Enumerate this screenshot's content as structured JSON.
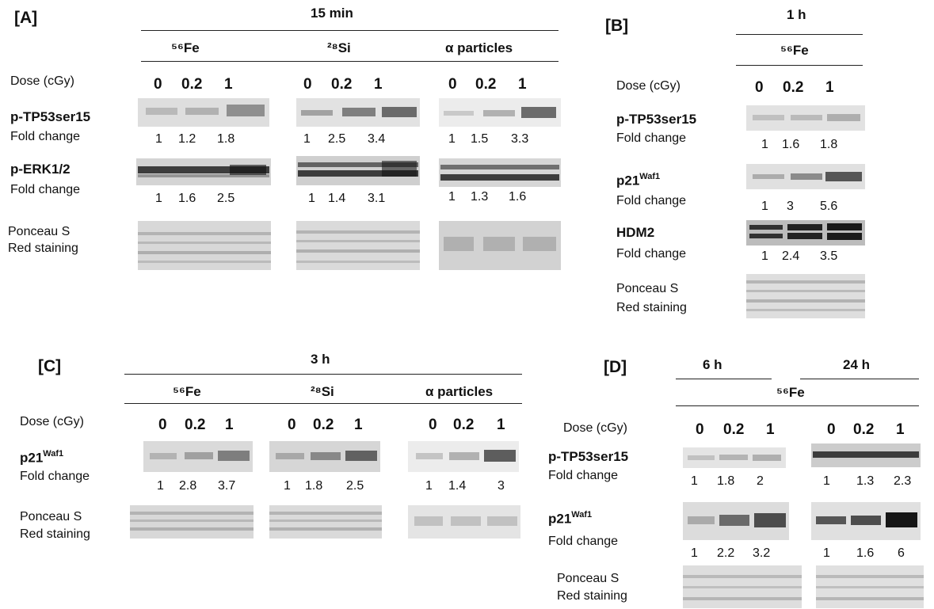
{
  "panels": {
    "A": {
      "letter": "[A]",
      "time": "15 min",
      "groups": [
        "⁵⁶Fe",
        "²⁸Si",
        "α particles"
      ],
      "dose_label": "Dose (cGy)",
      "doses": [
        "0",
        "0.2",
        "1"
      ],
      "rows": [
        {
          "label": "p-TP53ser15",
          "fold_label": "Fold change",
          "values": [
            [
              "1",
              "1.2",
              "1.8"
            ],
            [
              "1",
              "2.5",
              "3.4"
            ],
            [
              "1",
              "1.5",
              "3.3"
            ]
          ]
        },
        {
          "label": "p-ERK1/2",
          "fold_label": "Fold change",
          "values": [
            [
              "1",
              "1.6",
              "2.5"
            ],
            [
              "1",
              "1.4",
              "3.1"
            ],
            [
              "1",
              "1.3",
              "1.6"
            ]
          ]
        }
      ],
      "stain": [
        "Ponceau S",
        "Red staining"
      ]
    },
    "B": {
      "letter": "[B]",
      "time": "1 h",
      "groups": [
        "⁵⁶Fe"
      ],
      "dose_label": "Dose (cGy)",
      "doses": [
        "0",
        "0.2",
        "1"
      ],
      "rows": [
        {
          "label": "p-TP53ser15",
          "fold_label": "Fold change",
          "values": [
            [
              "1",
              "1.6",
              "1.8"
            ]
          ]
        },
        {
          "label": "p21",
          "sup": "Waf1",
          "fold_label": "Fold change",
          "values": [
            [
              "1",
              "3",
              "5.6"
            ]
          ]
        },
        {
          "label": "HDM2",
          "fold_label": "Fold change",
          "values": [
            [
              "1",
              "2.4",
              "3.5"
            ]
          ]
        }
      ],
      "stain": [
        "Ponceau S",
        "Red staining"
      ]
    },
    "C": {
      "letter": "[C]",
      "time": "3 h",
      "groups": [
        "⁵⁶Fe",
        "²⁸Si",
        "α particles"
      ],
      "dose_label": "Dose (cGy)",
      "doses": [
        "0",
        "0.2",
        "1"
      ],
      "rows": [
        {
          "label": "p21",
          "sup": "Waf1",
          "fold_label": "Fold change",
          "values": [
            [
              "1",
              "2.8",
              "3.7"
            ],
            [
              "1",
              "1.8",
              "2.5"
            ],
            [
              "1",
              "1.4",
              "3"
            ]
          ]
        }
      ],
      "stain": [
        "Ponceau S",
        "Red staining"
      ]
    },
    "D": {
      "letter": "[D]",
      "times": [
        "6 h",
        "24 h"
      ],
      "group": "⁵⁶Fe",
      "dose_label": "Dose (cGy)",
      "doses": [
        "0",
        "0.2",
        "1"
      ],
      "rows": [
        {
          "label": "p-TP53ser15",
          "fold_label": "Fold change",
          "values": [
            [
              "1",
              "1.8",
              "2"
            ],
            [
              "1",
              "1.3",
              "2.3"
            ]
          ]
        },
        {
          "label": "p21",
          "sup": "Waf1",
          "fold_label": "Fold change",
          "values": [
            [
              "1",
              "2.2",
              "3.2"
            ],
            [
              "1",
              "1.6",
              "6"
            ]
          ]
        }
      ],
      "stain": [
        "Ponceau S",
        "Red staining"
      ]
    }
  }
}
